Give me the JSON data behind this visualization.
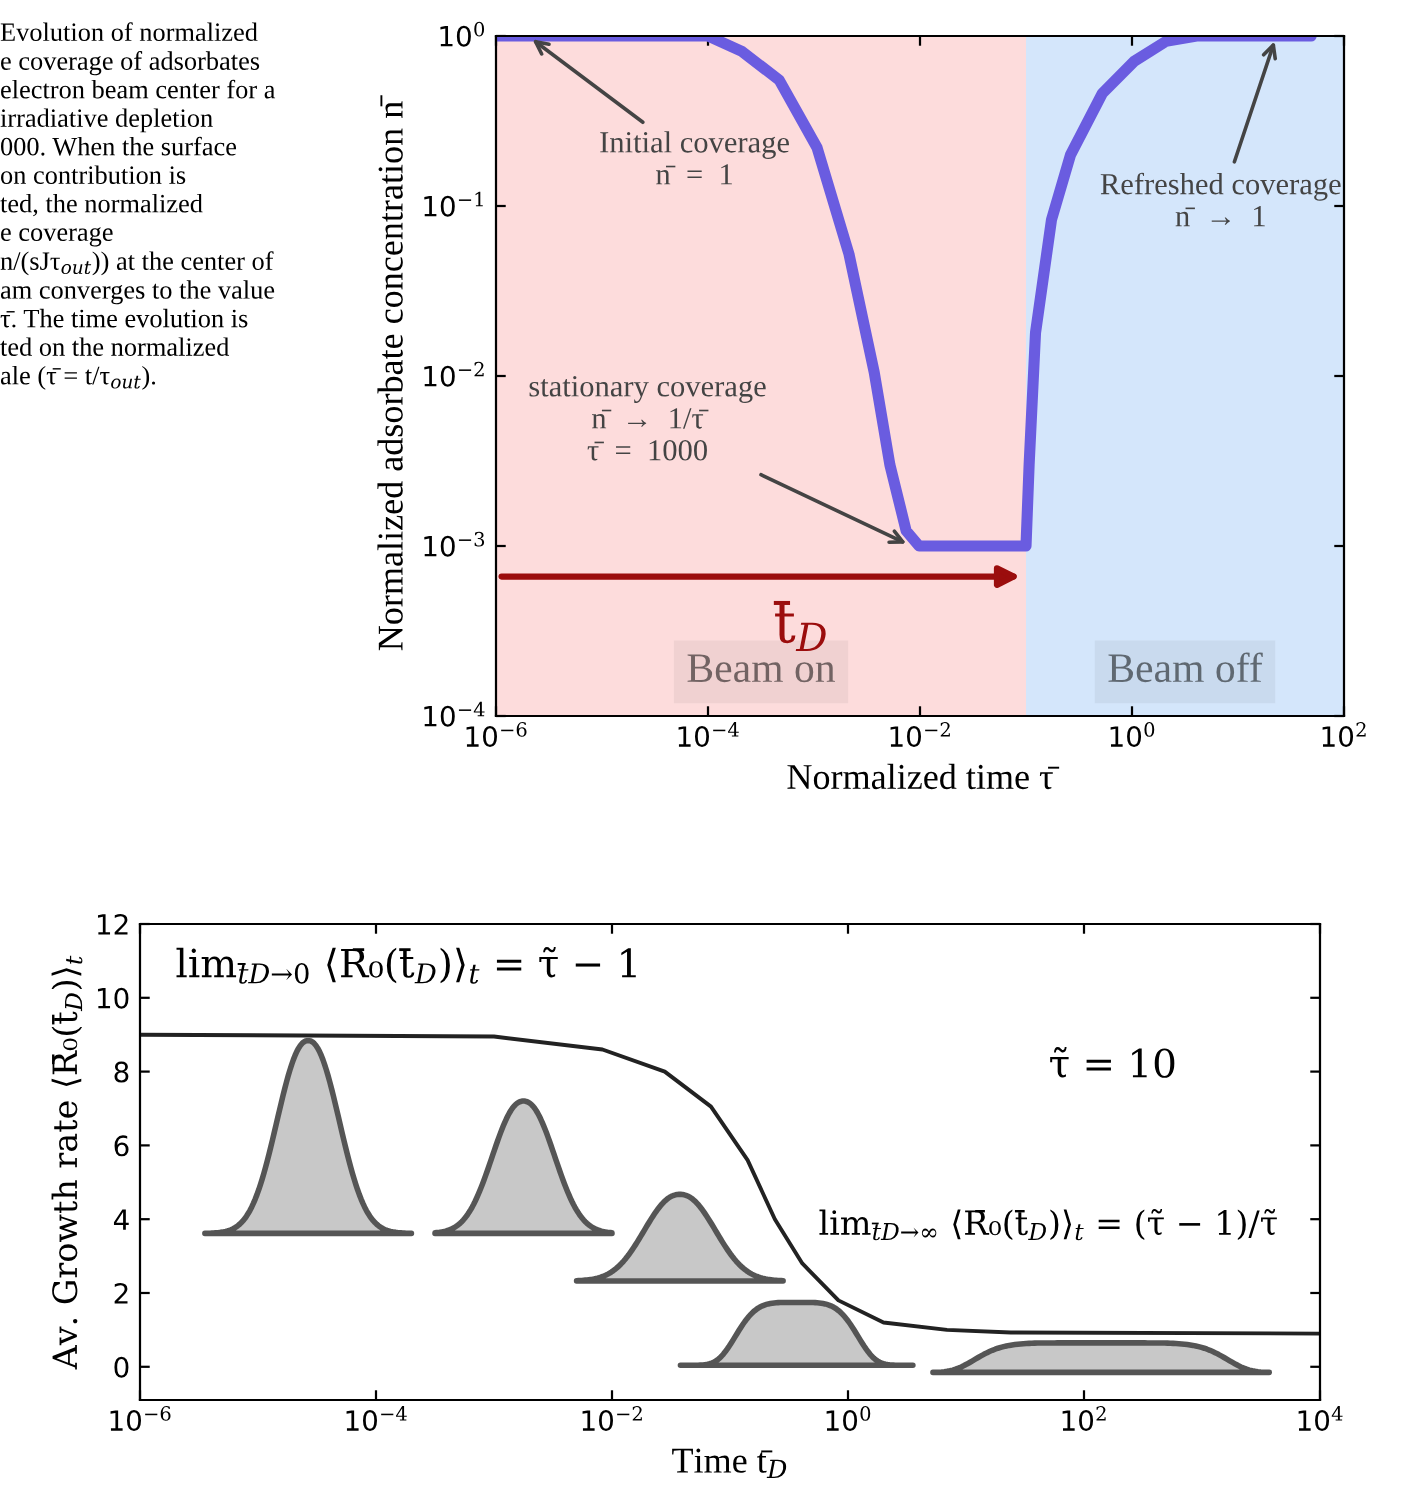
{
  "chart_data": [
    {
      "type": "line",
      "xlabel": "Normalized time τ̄",
      "ylabel": "Normalized adsorbate concentration n̄",
      "log": "xy",
      "xlim": [
        1e-06,
        100
      ],
      "xticks": [
        {
          "value": 1e-06,
          "label": "10$^{−6}$"
        },
        {
          "value": 0.0001,
          "label": "10$^{−4}$"
        },
        {
          "value": 0.01,
          "label": "10$^{−2}$"
        },
        {
          "value": 1,
          "label": "10$^{0}$"
        },
        {
          "value": 100,
          "label": "10$^{2}$"
        }
      ],
      "ylim": [
        0.0001,
        1
      ],
      "yticks": [
        {
          "value": 0.0001,
          "label": "10$^{−4}$"
        },
        {
          "value": 0.001,
          "label": "10$^{−3}$"
        },
        {
          "value": 0.01,
          "label": "10$^{−2}$"
        },
        {
          "value": 0.1,
          "label": "10$^{−1}$"
        },
        {
          "value": 1,
          "label": "10$^{0}$"
        }
      ],
      "series": [
        {
          "color": "#6a5ce0",
          "x": [
            1e-06,
            0.0001,
            0.00021,
            0.00047,
            0.00107,
            0.00214,
            0.0037,
            0.0052,
            0.0074,
            0.0098,
            0.1,
            0.1,
            0.107,
            0.123,
            0.174,
            0.263,
            0.525,
            1.05,
            2.09,
            4.07,
            49
          ],
          "values": [
            1,
            1,
            0.81,
            0.55,
            0.22,
            0.052,
            0.0105,
            0.003,
            0.00123,
            0.001,
            0.001,
            0.001,
            0.003,
            0.018,
            0.083,
            0.2,
            0.46,
            0.71,
            0.93,
            1,
            1
          ]
        }
      ],
      "bands": [
        {
          "axis": "x",
          "from": 1e-06,
          "to": 0.1,
          "label": "Beam on",
          "color": "#fddcdc"
        },
        {
          "axis": "x",
          "from": 0.1,
          "to": 100,
          "label": "Beam off",
          "color": "#d4e6fb"
        }
      ],
      "annotations": [
        "Evolution of normalized\ne coverage of adsorbates\nelectron beam center for a\nirradiative depletion\n000. When the surface\non contribution is\nted, the normalized\ne coverage\nn/(sJτ$_{out}$)) at the center of\nam converges to the value\nτ̄. The time evolution is\nted on the normalized\nale (τ̄ = t/τ$_{out}$).",
        {
          "text": "Initial coverage\nn̄  =  1",
          "x": 2e-06,
          "y": 1
        },
        {
          "text": "Refreshed coverage\nn̄  →  1",
          "x": 23,
          "y": 1
        },
        {
          "text": "stationary coverage\nn̄  →  1/τ̄\nτ̄  =  1000",
          "x": 0.0083,
          "y": 0.001
        },
        "t̄$_{D}$"
      ]
    },
    {
      "type": "line",
      "xlabel": "Time t̄$_{D}$",
      "ylabel": "Av. Growth rate ⟨R̄₀(t̄$_{D}$)⟩$_{t}$",
      "log": "x",
      "xlim": [
        1e-06,
        10000
      ],
      "xticks": [
        {
          "value": 1e-06,
          "label": "10$^{−6}$"
        },
        {
          "value": 0.0001,
          "label": "10$^{−4}$"
        },
        {
          "value": 0.01,
          "label": "10$^{−2}$"
        },
        {
          "value": 1,
          "label": "10$^{0}$"
        },
        {
          "value": 100,
          "label": "10$^{2}$"
        },
        {
          "value": 10000,
          "label": "10$^{4}$"
        }
      ],
      "ylim": [
        -0.9,
        12
      ],
      "yticks": [
        0,
        2,
        4,
        6,
        8,
        10,
        12
      ],
      "series": [
        {
          "color": "#222222",
          "x": [
            1e-06,
            0.001,
            0.0083,
            0.028,
            0.069,
            0.141,
            0.24,
            0.41,
            0.83,
            2.0,
            6.9,
            24,
            10000
          ],
          "values": [
            9.0,
            8.95,
            8.6,
            8.0,
            7.05,
            5.6,
            4.0,
            2.8,
            1.8,
            1.2,
            1.0,
            0.93,
            0.9
          ]
        }
      ],
      "annotations": [
        "lim$_{t̄D→0}$ ⟨R̄₀(t̄$_{D}$)⟩$_{t}$ = τ̃ − 1",
        "τ̃ = 10",
        "lim$_{t̄D→∞}$ ⟨R̄₀(t̄$_{D}$)⟩$_{t}$ = (τ̃ − 1)/τ̃"
      ]
    }
  ]
}
